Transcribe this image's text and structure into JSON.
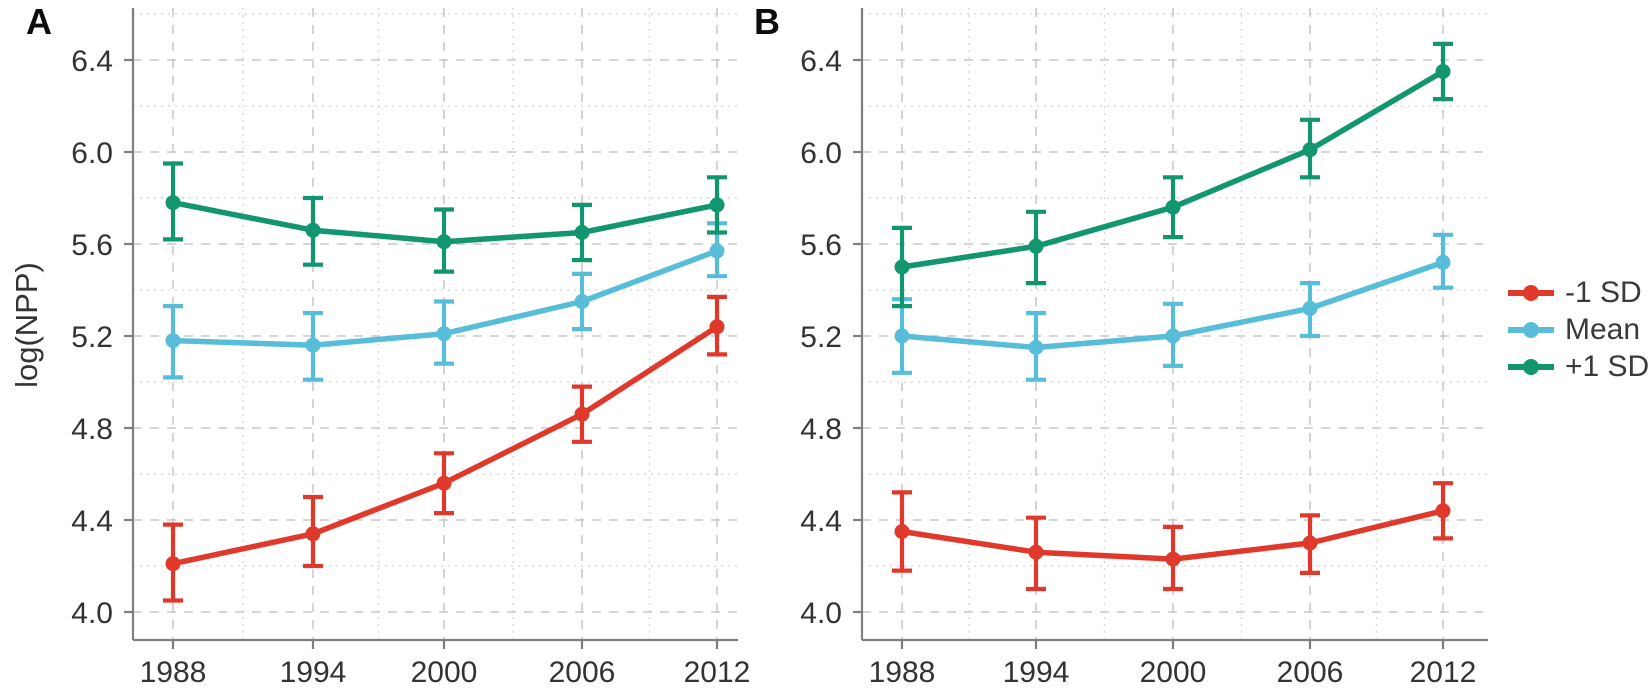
{
  "figure": {
    "panels": [
      {
        "letter": "A"
      },
      {
        "letter": "B"
      }
    ]
  },
  "legend": {
    "position": "right-outside",
    "items": [
      {
        "label": "-1 SD",
        "color": "#E0392B"
      },
      {
        "label": "Mean",
        "color": "#57BDD9"
      },
      {
        "label": "+1 SD",
        "color": "#12966F"
      }
    ]
  },
  "chart_data": [
    {
      "type": "line",
      "panel": "A",
      "title": "",
      "xlabel": "",
      "ylabel": "log(NPP)",
      "x": [
        1988,
        1994,
        2000,
        2006,
        2012
      ],
      "yticks": [
        4.0,
        4.4,
        4.8,
        5.2,
        5.6,
        6.0,
        6.4
      ],
      "ylim": [
        3.88,
        6.62
      ],
      "grid": "dashed-major dotted-minor",
      "series": [
        {
          "name": "-1 SD",
          "color": "#E0392B",
          "values": [
            4.21,
            4.34,
            4.56,
            4.86,
            5.24
          ],
          "err_low": [
            4.05,
            4.2,
            4.43,
            4.74,
            5.12
          ],
          "err_high": [
            4.38,
            4.5,
            4.69,
            4.98,
            5.37
          ]
        },
        {
          "name": "Mean",
          "color": "#57BDD9",
          "values": [
            5.18,
            5.16,
            5.21,
            5.35,
            5.57
          ],
          "err_low": [
            5.02,
            5.01,
            5.08,
            5.23,
            5.46
          ],
          "err_high": [
            5.33,
            5.3,
            5.35,
            5.47,
            5.69
          ]
        },
        {
          "name": "+1 SD",
          "color": "#12966F",
          "values": [
            5.78,
            5.66,
            5.61,
            5.65,
            5.77
          ],
          "err_low": [
            5.62,
            5.51,
            5.48,
            5.53,
            5.65
          ],
          "err_high": [
            5.95,
            5.8,
            5.75,
            5.77,
            5.89
          ]
        }
      ]
    },
    {
      "type": "line",
      "panel": "B",
      "title": "",
      "xlabel": "",
      "ylabel": "",
      "x": [
        1988,
        1994,
        2000,
        2006,
        2012
      ],
      "yticks": [
        4.0,
        4.4,
        4.8,
        5.2,
        5.6,
        6.0,
        6.4
      ],
      "ylim": [
        3.88,
        6.62
      ],
      "grid": "dashed-major dotted-minor",
      "series": [
        {
          "name": "-1 SD",
          "color": "#E0392B",
          "values": [
            4.35,
            4.26,
            4.23,
            4.3,
            4.44
          ],
          "err_low": [
            4.18,
            4.1,
            4.1,
            4.17,
            4.32
          ],
          "err_high": [
            4.52,
            4.41,
            4.37,
            4.42,
            4.56
          ]
        },
        {
          "name": "Mean",
          "color": "#57BDD9",
          "values": [
            5.2,
            5.15,
            5.2,
            5.32,
            5.52
          ],
          "err_low": [
            5.04,
            5.01,
            5.07,
            5.2,
            5.41
          ],
          "err_high": [
            5.36,
            5.3,
            5.34,
            5.43,
            5.64
          ]
        },
        {
          "name": "+1 SD",
          "color": "#12966F",
          "values": [
            5.5,
            5.59,
            5.76,
            6.01,
            6.35
          ],
          "err_low": [
            5.33,
            5.43,
            5.63,
            5.89,
            6.23
          ],
          "err_high": [
            5.67,
            5.74,
            5.89,
            6.14,
            6.47
          ]
        }
      ]
    }
  ]
}
